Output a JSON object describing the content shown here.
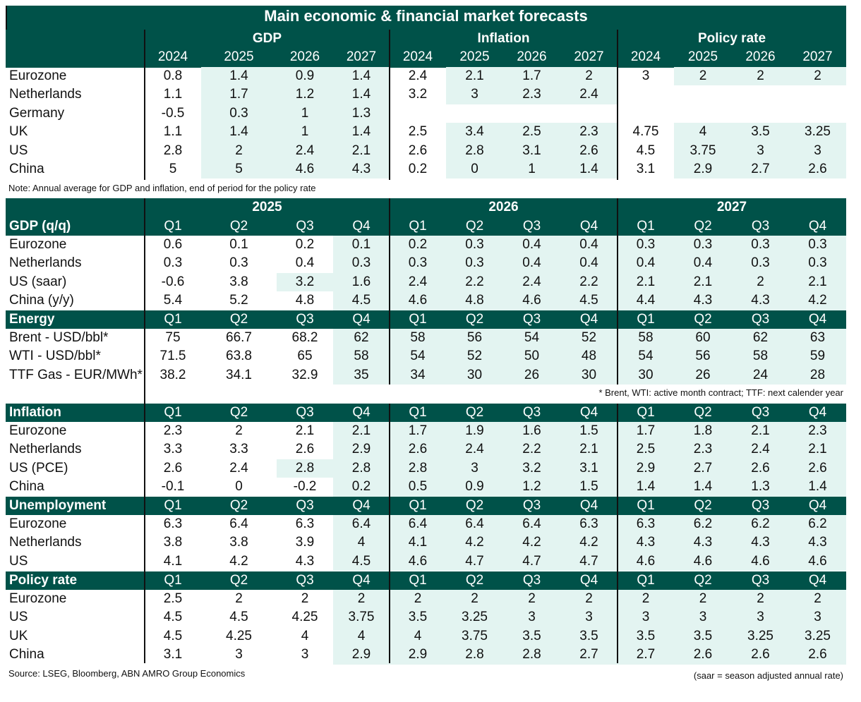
{
  "title": "Main economic & financial market forecasts",
  "annual": {
    "groups": [
      "GDP",
      "Inflation",
      "Policy rate"
    ],
    "years": [
      "2024",
      "2025",
      "2026",
      "2027",
      "2024",
      "2025",
      "2026",
      "2027",
      "2024",
      "2025",
      "2026",
      "2027"
    ],
    "rows": [
      {
        "label": "Eurozone",
        "values": [
          "0.8",
          "1.4",
          "0.9",
          "1.4",
          "2.4",
          "2.1",
          "1.7",
          "2",
          "3",
          "2",
          "2",
          "2"
        ]
      },
      {
        "label": "Netherlands",
        "values": [
          "1.1",
          "1.7",
          "1.2",
          "1.4",
          "3.2",
          "3",
          "2.3",
          "2.4",
          "",
          "",
          "",
          ""
        ]
      },
      {
        "label": "Germany",
        "values": [
          "-0.5",
          "0.3",
          "1",
          "1.3",
          "",
          "",
          "",
          "",
          "",
          "",
          "",
          ""
        ]
      },
      {
        "label": "UK",
        "values": [
          "1.1",
          "1.4",
          "1",
          "1.4",
          "2.5",
          "3.4",
          "2.5",
          "2.3",
          "4.75",
          "4",
          "3.5",
          "3.25"
        ]
      },
      {
        "label": "US",
        "values": [
          "2.8",
          "2",
          "2.4",
          "2.1",
          "2.6",
          "2.8",
          "3.1",
          "2.6",
          "4.5",
          "3.75",
          "3",
          "3"
        ]
      },
      {
        "label": "China",
        "values": [
          "5",
          "5",
          "4.6",
          "4.3",
          "0.2",
          "0",
          "1",
          "1.4",
          "3.1",
          "2.9",
          "2.7",
          "2.6"
        ]
      }
    ],
    "note": "Note: Annual average for GDP and inflation, end of period for the policy rate"
  },
  "quarterly": {
    "years": [
      "2025",
      "2026",
      "2027"
    ],
    "quarters": [
      "Q1",
      "Q2",
      "Q3",
      "Q4",
      "Q1",
      "Q2",
      "Q3",
      "Q4",
      "Q1",
      "Q2",
      "Q3",
      "Q4"
    ],
    "sections": [
      {
        "title": "GDP (q/q)",
        "rows": [
          {
            "label": "Eurozone",
            "values": [
              "0.6",
              "0.1",
              "0.2",
              "0.1",
              "0.2",
              "0.3",
              "0.4",
              "0.4",
              "0.3",
              "0.3",
              "0.3",
              "0.3"
            ]
          },
          {
            "label": "Netherlands",
            "values": [
              "0.3",
              "0.3",
              "0.4",
              "0.3",
              "0.3",
              "0.3",
              "0.4",
              "0.4",
              "0.4",
              "0.4",
              "0.3",
              "0.3"
            ]
          },
          {
            "label": "US (saar)",
            "values": [
              "-0.6",
              "3.8",
              "3.2",
              "1.6",
              "2.4",
              "2.2",
              "2.4",
              "2.2",
              "2.1",
              "2.1",
              "2",
              "2.1"
            ]
          },
          {
            "label": "China (y/y)",
            "values": [
              "5.4",
              "5.2",
              "4.8",
              "4.5",
              "4.6",
              "4.8",
              "4.6",
              "4.5",
              "4.4",
              "4.3",
              "4.3",
              "4.2"
            ]
          }
        ]
      },
      {
        "title": "Energy",
        "rows": [
          {
            "label": "Brent - USD/bbl*",
            "values": [
              "75",
              "66.7",
              "68.2",
              "62",
              "58",
              "56",
              "54",
              "52",
              "58",
              "60",
              "62",
              "63"
            ]
          },
          {
            "label": "WTI - USD/bbl*",
            "values": [
              "71.5",
              "63.8",
              "65",
              "58",
              "54",
              "52",
              "50",
              "48",
              "54",
              "56",
              "58",
              "59"
            ]
          },
          {
            "label": "TTF Gas - EUR/MWh*",
            "values": [
              "38.2",
              "34.1",
              "32.9",
              "35",
              "34",
              "30",
              "26",
              "30",
              "30",
              "26",
              "24",
              "28"
            ]
          }
        ]
      },
      {
        "title": "Inflation",
        "rows": [
          {
            "label": "Eurozone",
            "values": [
              "2.3",
              "2",
              "2.1",
              "2.1",
              "1.7",
              "1.9",
              "1.6",
              "1.5",
              "1.7",
              "1.8",
              "2.1",
              "2.3"
            ]
          },
          {
            "label": "Netherlands",
            "values": [
              "3.3",
              "3.3",
              "2.6",
              "2.9",
              "2.6",
              "2.4",
              "2.2",
              "2.1",
              "2.5",
              "2.3",
              "2.4",
              "2.1"
            ]
          },
          {
            "label": "US (PCE)",
            "values": [
              "2.6",
              "2.4",
              "2.8",
              "2.8",
              "2.8",
              "3",
              "3.2",
              "3.1",
              "2.9",
              "2.7",
              "2.6",
              "2.6"
            ]
          },
          {
            "label": "China",
            "values": [
              "-0.1",
              "0",
              "-0.2",
              "0.2",
              "0.5",
              "0.9",
              "1.2",
              "1.5",
              "1.4",
              "1.4",
              "1.3",
              "1.4"
            ]
          }
        ]
      },
      {
        "title": "Unemployment",
        "rows": [
          {
            "label": "Eurozone",
            "values": [
              "6.3",
              "6.4",
              "6.3",
              "6.4",
              "6.4",
              "6.4",
              "6.4",
              "6.3",
              "6.3",
              "6.2",
              "6.2",
              "6.2"
            ]
          },
          {
            "label": "Netherlands",
            "values": [
              "3.8",
              "3.8",
              "3.9",
              "4",
              "4.1",
              "4.2",
              "4.2",
              "4.2",
              "4.3",
              "4.3",
              "4.3",
              "4.3"
            ]
          },
          {
            "label": "US",
            "values": [
              "4.1",
              "4.2",
              "4.3",
              "4.5",
              "4.6",
              "4.7",
              "4.7",
              "4.7",
              "4.6",
              "4.6",
              "4.6",
              "4.6"
            ]
          }
        ]
      },
      {
        "title": "Policy rate",
        "rows": [
          {
            "label": "Eurozone",
            "values": [
              "2.5",
              "2",
              "2",
              "2",
              "2",
              "2",
              "2",
              "2",
              "2",
              "2",
              "2",
              "2"
            ]
          },
          {
            "label": "US",
            "values": [
              "4.5",
              "4.5",
              "4.25",
              "3.75",
              "3.5",
              "3.25",
              "3",
              "3",
              "3",
              "3",
              "3",
              "3"
            ]
          },
          {
            "label": "UK",
            "values": [
              "4.5",
              "4.25",
              "4",
              "4",
              "4",
              "3.75",
              "3.5",
              "3.5",
              "3.5",
              "3.5",
              "3.25",
              "3.25"
            ]
          },
          {
            "label": "China",
            "values": [
              "3.1",
              "3",
              "3",
              "2.9",
              "2.9",
              "2.8",
              "2.8",
              "2.7",
              "2.7",
              "2.6",
              "2.6",
              "2.6"
            ]
          }
        ]
      }
    ],
    "energy_note": "* Brent, WTI: active month contract; TTF: next calender year",
    "source": "Source: LSEG, Bloomberg, ABN AMRO Group Economics",
    "saar_note": "(saar = season adjusted annual rate)"
  },
  "colors": {
    "header": "#005249",
    "shade": "#e3f4f1"
  }
}
